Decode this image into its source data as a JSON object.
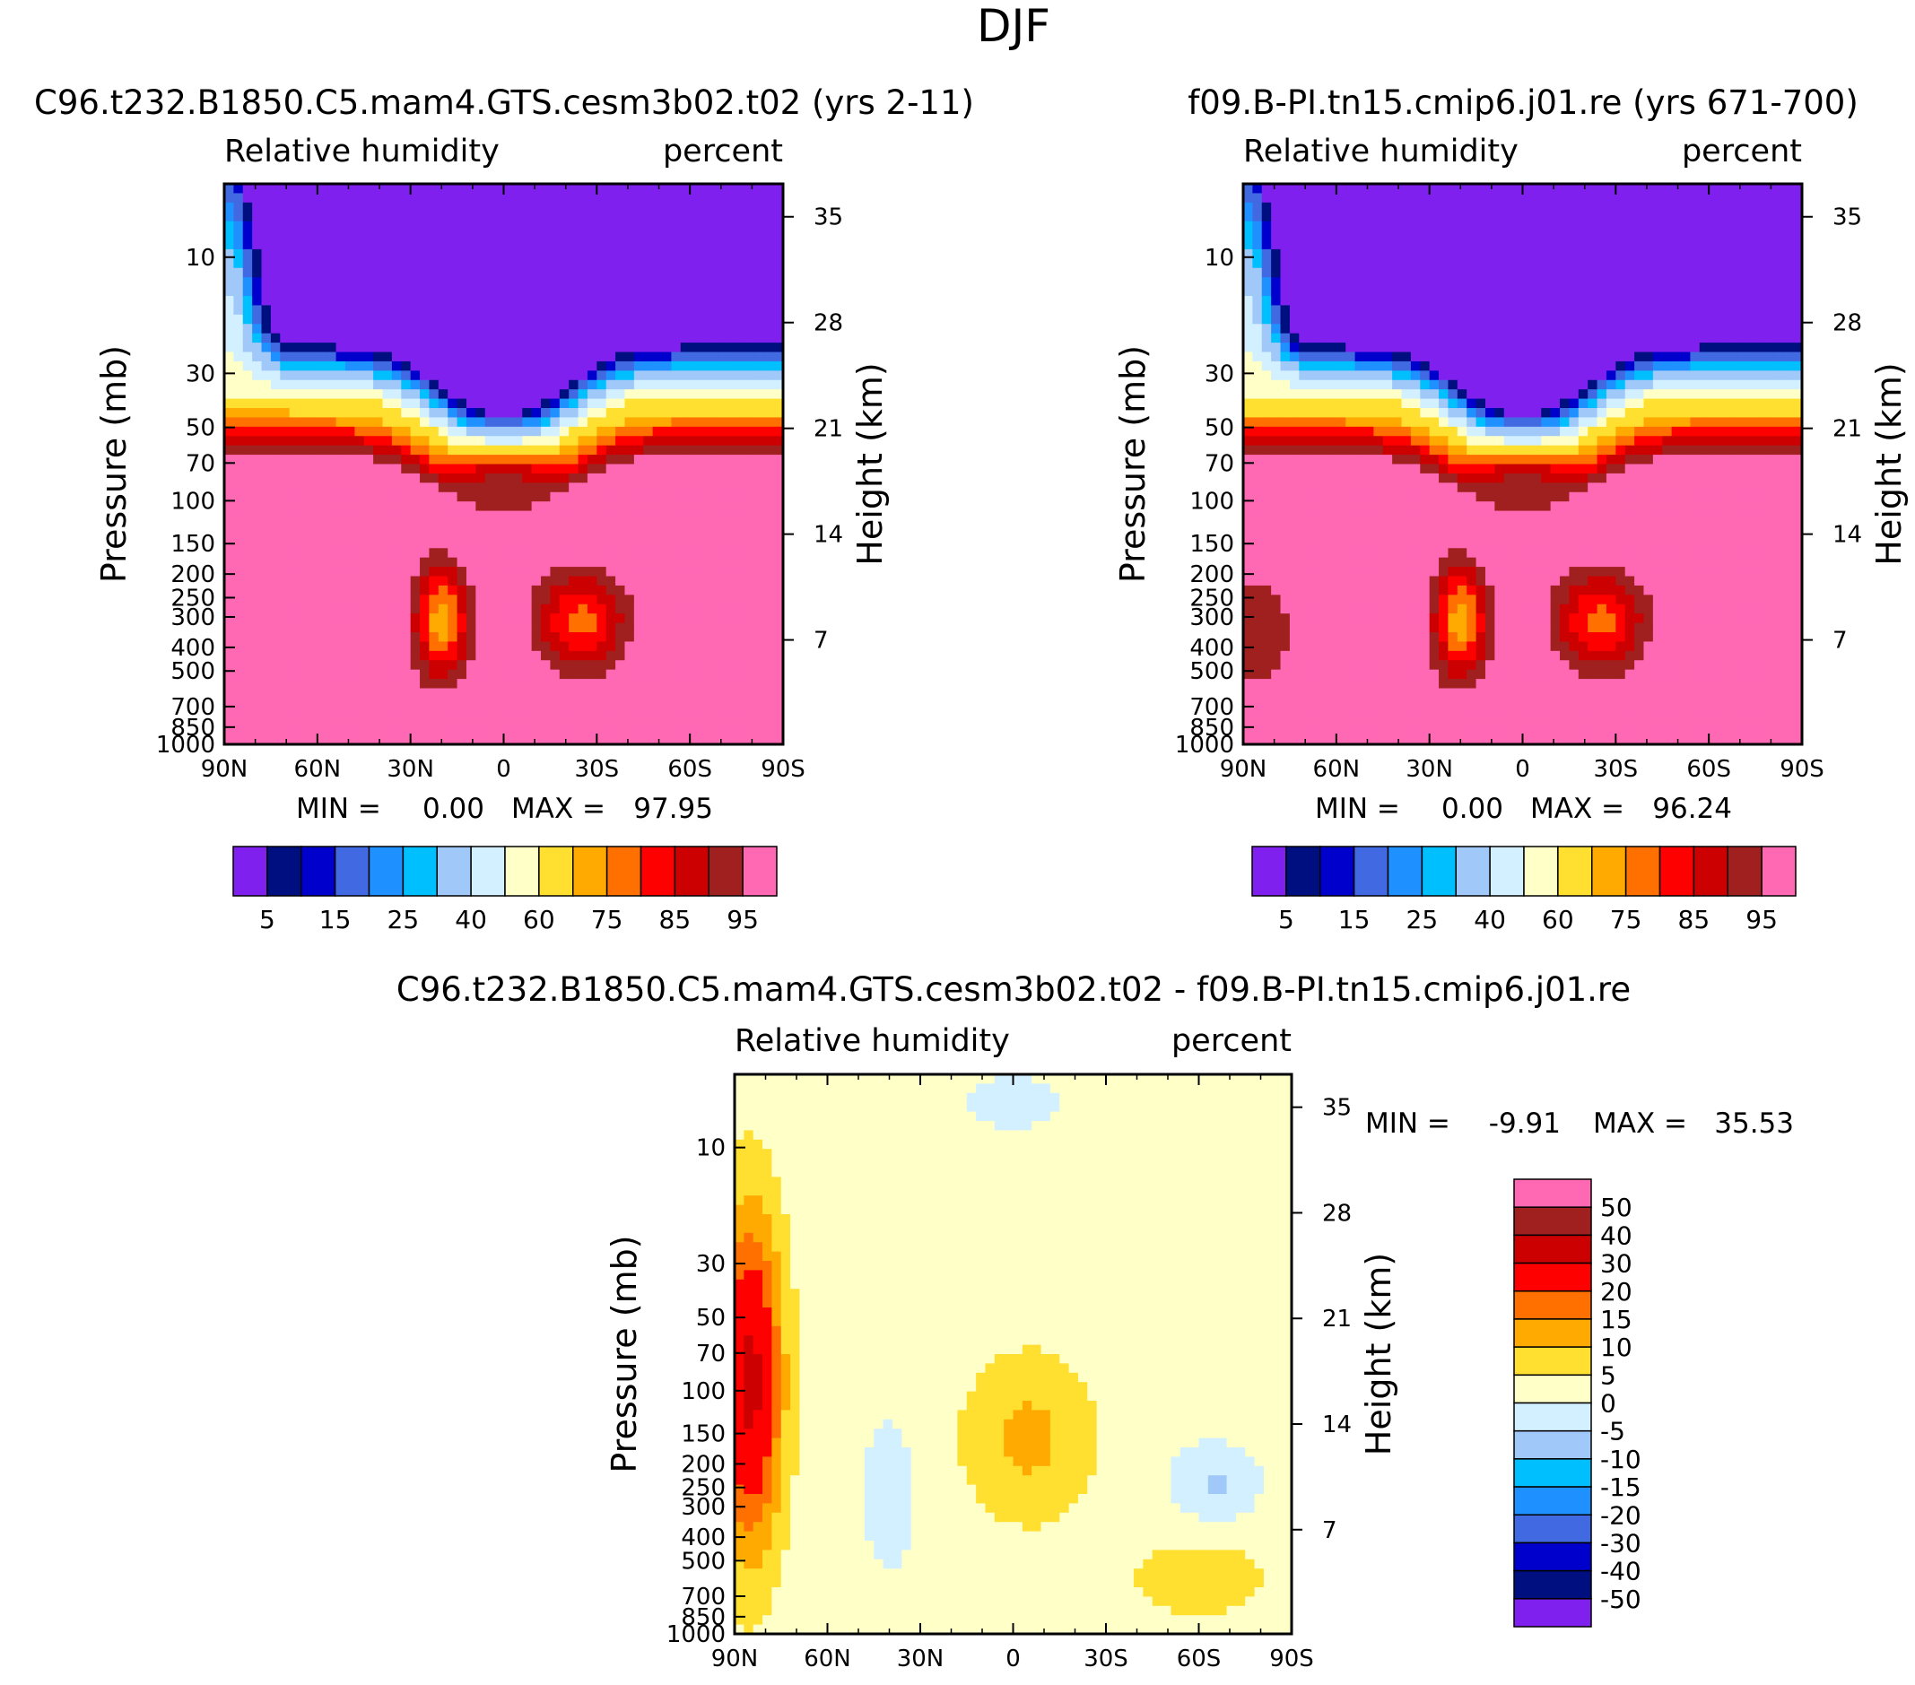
{
  "figure": {
    "title": "DJF"
  },
  "palettes": {
    "abs": [
      "#8020ee",
      "#000f80",
      "#0000cd",
      "#4169e1",
      "#1e90ff",
      "#00bfff",
      "#a0c8f8",
      "#d2f0ff",
      "#ffffc8",
      "#ffe030",
      "#ffaa00",
      "#ff7000",
      "#ff0000",
      "#cc0000",
      "#a02020",
      "#ff69b4"
    ],
    "diff": [
      "#8020ee",
      "#000f80",
      "#0000cd",
      "#4169e1",
      "#1e90ff",
      "#00bfff",
      "#a0c8f8",
      "#d2f0ff",
      "#ffffc8",
      "#ffe030",
      "#ffaa00",
      "#ff7000",
      "#ff0000",
      "#cc0000",
      "#a02020",
      "#ff69b4"
    ]
  },
  "chart_data": [
    {
      "type": "heatmap",
      "panel": "model",
      "title": "C96.t232.B1850.C5.mam4.GTS.cesm3b02.t02 (yrs 2-11)",
      "variable": "Relative humidity",
      "units": "percent",
      "ylabel": "Pressure (mb)",
      "y2label": "Height (km)",
      "x_ticks": [
        "90N",
        "60N",
        "30N",
        "0",
        "30S",
        "60S",
        "90S"
      ],
      "y_ticks": [
        "10",
        "30",
        "50",
        "70",
        "100",
        "150",
        "200",
        "250",
        "300",
        "400",
        "500",
        "700",
        "850",
        "1000"
      ],
      "y2_ticks": [
        "35",
        "28",
        "21",
        "14",
        "7"
      ],
      "ylim": [
        5,
        1000
      ],
      "y_scale": "log",
      "xlim": [
        "90N",
        "90S"
      ],
      "stats": {
        "min_label": "MIN =",
        "min": "0.00",
        "max_label": "MAX =",
        "max": "97.95"
      },
      "colorbar": {
        "orientation": "horizontal",
        "levels": [
          "5",
          "15",
          "25",
          "40",
          "60",
          "75",
          "85",
          "95"
        ]
      }
    },
    {
      "type": "heatmap",
      "panel": "reference",
      "title": "f09.B-PI.tn15.cmip6.j01.re (yrs 671-700)",
      "variable": "Relative humidity",
      "units": "percent",
      "ylabel": "Pressure (mb)",
      "y2label": "Height (km)",
      "x_ticks": [
        "90N",
        "60N",
        "30N",
        "0",
        "30S",
        "60S",
        "90S"
      ],
      "y_ticks": [
        "10",
        "30",
        "50",
        "70",
        "100",
        "150",
        "200",
        "250",
        "300",
        "400",
        "500",
        "700",
        "850",
        "1000"
      ],
      "y2_ticks": [
        "35",
        "28",
        "21",
        "14",
        "7"
      ],
      "ylim": [
        5,
        1000
      ],
      "y_scale": "log",
      "xlim": [
        "90N",
        "90S"
      ],
      "stats": {
        "min_label": "MIN =",
        "min": "0.00",
        "max_label": "MAX =",
        "max": "96.24"
      },
      "colorbar": {
        "orientation": "horizontal",
        "levels": [
          "5",
          "15",
          "25",
          "40",
          "60",
          "75",
          "85",
          "95"
        ]
      }
    },
    {
      "type": "heatmap",
      "panel": "difference",
      "title": "C96.t232.B1850.C5.mam4.GTS.cesm3b02.t02 - f09.B-PI.tn15.cmip6.j01.re",
      "variable": "Relative humidity",
      "units": "percent",
      "ylabel": "Pressure (mb)",
      "y2label": "Height (km)",
      "x_ticks": [
        "90N",
        "60N",
        "30N",
        "0",
        "30S",
        "60S",
        "90S"
      ],
      "y_ticks": [
        "10",
        "30",
        "50",
        "70",
        "100",
        "150",
        "200",
        "250",
        "300",
        "400",
        "500",
        "700",
        "850",
        "1000"
      ],
      "y2_ticks": [
        "35",
        "28",
        "21",
        "14",
        "7"
      ],
      "ylim": [
        5,
        1000
      ],
      "y_scale": "log",
      "xlim": [
        "90N",
        "90S"
      ],
      "stats": {
        "min_label": "MIN =",
        "min": "-9.91",
        "max_label": "MAX =",
        "max": "35.53"
      },
      "colorbar": {
        "orientation": "vertical",
        "levels": [
          "-50",
          "-40",
          "-30",
          "-20",
          "-15",
          "-10",
          "-5",
          "0",
          "5",
          "10",
          "15",
          "20",
          "30",
          "40",
          "50"
        ]
      }
    }
  ]
}
